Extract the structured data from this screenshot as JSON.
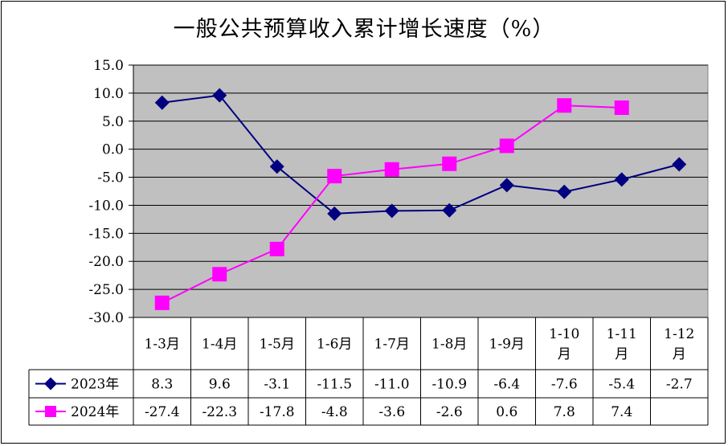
{
  "title": "一般公共预算收入累计增长速度（%）",
  "chart_data": {
    "type": "line",
    "title": "一般公共预算收入累计增长速度（%）",
    "categories": [
      "1-3月",
      "1-4月",
      "1-5月",
      "1-6月",
      "1-7月",
      "1-8月",
      "1-9月",
      "1-10月",
      "1-11月",
      "1-12月"
    ],
    "category_lines": [
      [
        "1-3月"
      ],
      [
        "1-4月"
      ],
      [
        "1-5月"
      ],
      [
        "1-6月"
      ],
      [
        "1-7月"
      ],
      [
        "1-8月"
      ],
      [
        "1-9月"
      ],
      [
        "1-10",
        "月"
      ],
      [
        "1-11",
        "月"
      ],
      [
        "1-12",
        "月"
      ]
    ],
    "ylim": [
      -30,
      15
    ],
    "yticks": [
      15,
      10,
      5,
      0,
      -5,
      -10,
      -15,
      -20,
      -25,
      -30
    ],
    "ytick_labels": [
      "15.0",
      "10.0",
      "5.0",
      "0.0",
      "-5.0",
      "-10.0",
      "-15.0",
      "-20.0",
      "-25.0",
      "-30.0"
    ],
    "grid": true,
    "legend": "data-table",
    "series": [
      {
        "name": "2023年",
        "color": "#000080",
        "marker": "diamond",
        "values": [
          8.3,
          9.6,
          -3.1,
          -11.5,
          -11.0,
          -10.9,
          -6.4,
          -7.6,
          -5.4,
          -2.7
        ],
        "labels": [
          "8.3",
          "9.6",
          "-3.1",
          "-11.5",
          "-11.0",
          "-10.9",
          "-6.4",
          "-7.6",
          "-5.4",
          "-2.7"
        ]
      },
      {
        "name": "2024年",
        "color": "#FF00FF",
        "marker": "square",
        "values": [
          -27.4,
          -22.3,
          -17.8,
          -4.8,
          -3.6,
          -2.6,
          0.6,
          7.8,
          7.4,
          null
        ],
        "labels": [
          "-27.4",
          "-22.3",
          "-17.8",
          "-4.8",
          "-3.6",
          "-2.6",
          "0.6",
          "7.8",
          "7.4",
          ""
        ]
      }
    ]
  }
}
